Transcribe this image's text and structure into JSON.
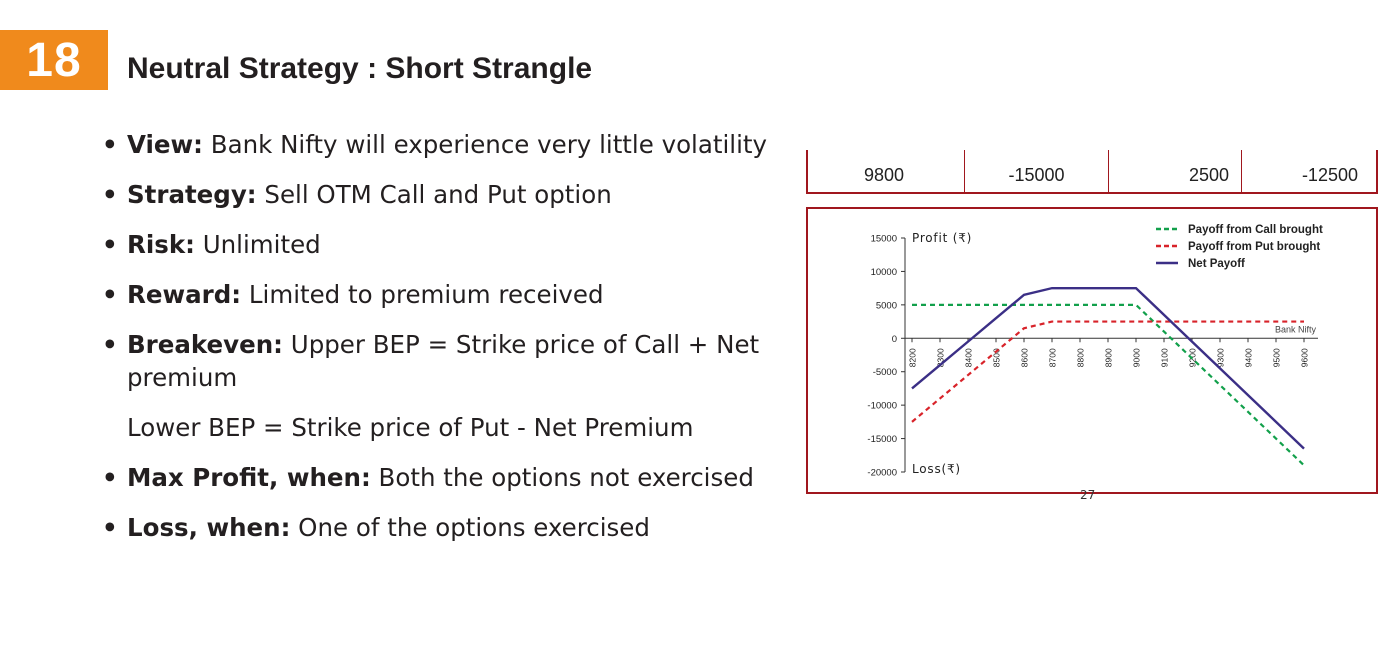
{
  "slide": {
    "number": "18",
    "title": "Neutral Strategy : Short Strangle"
  },
  "bullets": [
    {
      "label": "View:",
      "text": " Bank Nifty  will experience very little volatility"
    },
    {
      "label": "Strategy:",
      "text": " Sell OTM Call and Put option"
    },
    {
      "label": "Risk:",
      "text": " Unlimited"
    },
    {
      "label": "Reward:",
      "text": " Limited to premium received"
    },
    {
      "label": "Breakeven:",
      "text": " Upper BEP = Strike price of Call + Net",
      "continuation": "premium"
    },
    {
      "plain": "Lower BEP = Strike price of Put - Net Premium"
    },
    {
      "label": "Max Profit, when:",
      "text": " Both the options not exercised"
    },
    {
      "label": "Loss, when:",
      "text": " One of the options exercised"
    }
  ],
  "table_row": [
    "9800",
    "-15000",
    "2500",
    "-12500"
  ],
  "page_number_fragment": "27",
  "chart_data": {
    "type": "line",
    "xlabel": "Bank Nifty",
    "ylabel_top": "Profit (₹)",
    "ylabel_bottom": "Loss(₹)",
    "x": [
      8200,
      8300,
      8400,
      8500,
      8600,
      8700,
      8800,
      8900,
      9000,
      9100,
      9200,
      9300,
      9400,
      9500,
      9600
    ],
    "x_tick_labels": [
      "8200",
      "8300",
      "8400",
      "8500",
      "8600",
      "8700",
      "8800",
      "8900",
      "9000",
      "9100",
      "9200",
      "9300",
      "9400",
      "9500",
      "9600"
    ],
    "y_ticks": [
      15000,
      10000,
      5000,
      0,
      -5000,
      -10000,
      -15000,
      -20000
    ],
    "y_tick_labels": [
      "15000",
      "10000",
      "5000",
      "0",
      "-5000",
      "-10000",
      "-15000",
      "-20000"
    ],
    "ylim": [
      -20000,
      15000
    ],
    "legend_position": "top-right",
    "series": [
      {
        "name": "Payoff from Call brought",
        "color": "#12a04b",
        "dash": true,
        "values": [
          5000,
          5000,
          5000,
          5000,
          5000,
          5000,
          5000,
          5000,
          5000,
          1000,
          -3000,
          -7000,
          -11000,
          -15000,
          -19000
        ]
      },
      {
        "name": "Payoff from Put brought",
        "color": "#d8232a",
        "dash": true,
        "values": [
          -12500,
          -9000,
          -5500,
          -2000,
          1500,
          2500,
          2500,
          2500,
          2500,
          2500,
          2500,
          2500,
          2500,
          2500,
          2500
        ]
      },
      {
        "name": "Net Payoff",
        "color": "#3b2f86",
        "dash": false,
        "values": [
          -7500,
          -4000,
          -500,
          3000,
          6500,
          7500,
          7500,
          7500,
          7500,
          3500,
          -500,
          -4500,
          -8500,
          -12500,
          -16500
        ]
      }
    ]
  }
}
